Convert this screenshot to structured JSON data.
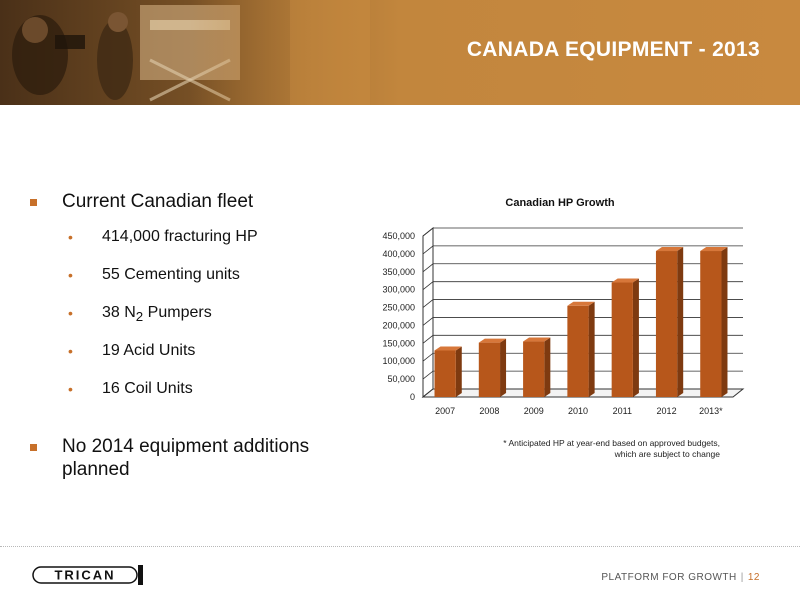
{
  "header": {
    "title": "CANADA EQUIPMENT - 2013"
  },
  "bullets": {
    "fleet_heading": "Current Canadian fleet",
    "items": [
      {
        "text": "414,000 fracturing HP"
      },
      {
        "text": "55 Cementing units"
      },
      {
        "pre": "38 N",
        "sub": "2",
        "post": " Pumpers"
      },
      {
        "text": "19 Acid Units"
      },
      {
        "text": "16 Coil Units"
      }
    ],
    "additions": "No 2014 equipment additions planned"
  },
  "chart_data": {
    "type": "bar",
    "title": "Canadian HP Growth",
    "categories": [
      "2007",
      "2008",
      "2009",
      "2010",
      "2011",
      "2012",
      "2013*"
    ],
    "values": [
      130000,
      152000,
      155000,
      255000,
      320000,
      408000,
      408000
    ],
    "ylim": [
      0,
      450000
    ],
    "yticks": [
      "0",
      "50,000",
      "100,000",
      "150,000",
      "200,000",
      "250,000",
      "300,000",
      "350,000",
      "400,000",
      "450,000"
    ],
    "grid": true,
    "bar_color": "#b7571b",
    "footnote": "*  Anticipated HP at year-end based on approved budgets, which are subject to change"
  },
  "footer": {
    "logo": "TRICAN",
    "tagline": "PLATFORM FOR GROWTH",
    "separator": "|",
    "page": "12"
  }
}
